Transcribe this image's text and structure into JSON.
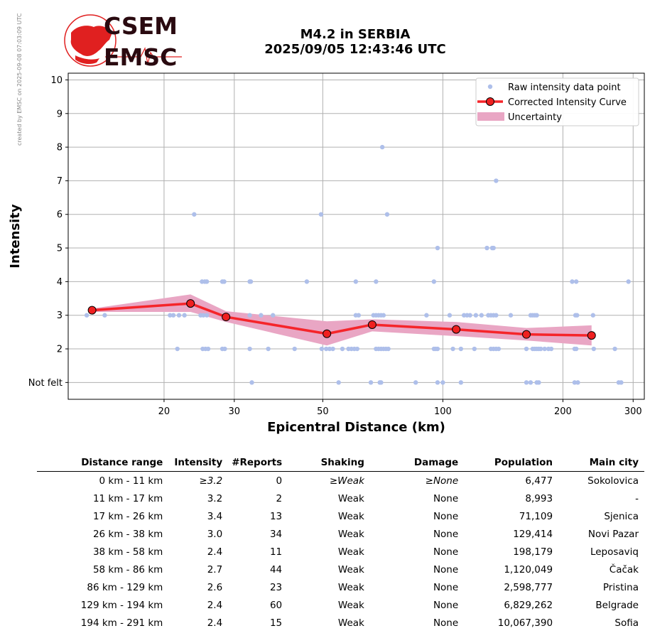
{
  "header": {
    "logo_top": "CSEM",
    "logo_bottom": "EMSC",
    "title_line1": "M4.2 in SERBIA",
    "title_line2": "2025/09/05 12:43:46 UTC",
    "side_credit": "created by EMSC on 2025-09-08 07:03:09 UTC"
  },
  "colors": {
    "raw_points": "#aebfea",
    "curve": "#f5252a",
    "curve_markers": "#ef2020",
    "uncertainty": "#e9a6c4",
    "grid": "#b0b0b0",
    "logo_red": "#e02020",
    "logo_dark": "#2a0a10"
  },
  "chart_data": {
    "type": "scatter",
    "title": "M4.2 in SERBIA\n2025/09/05 12:43:46 UTC",
    "xlabel": "Epicentral Distance (km)",
    "ylabel": "Intensity",
    "x_scale": "log",
    "xlim": [
      11.5,
      320
    ],
    "ylim": [
      0.5,
      10.2
    ],
    "x_ticks": [
      20,
      30,
      50,
      100,
      200,
      300
    ],
    "y_ticks": [
      1,
      2,
      3,
      4,
      5,
      6,
      7,
      8,
      9,
      10
    ],
    "y_tick_labels": [
      "Not felt",
      "2",
      "3",
      "4",
      "5",
      "6",
      "7",
      "8",
      "9",
      "10"
    ],
    "grid": true,
    "legend_position": "top-right",
    "legend": [
      "Raw intensity data point",
      "Corrected Intensity Curve",
      "Uncertainty"
    ],
    "series": [
      {
        "name": "Raw intensity data point",
        "type": "scatter",
        "points": [
          [
            12.8,
            3
          ],
          [
            14.2,
            3
          ],
          [
            20.7,
            3
          ],
          [
            21.1,
            3
          ],
          [
            21.8,
            3
          ],
          [
            22.5,
            3
          ],
          [
            21.6,
            2
          ],
          [
            23.8,
            6
          ],
          [
            24.9,
            4
          ],
          [
            25.3,
            4
          ],
          [
            25.6,
            4
          ],
          [
            24.7,
            3
          ],
          [
            25.1,
            3
          ],
          [
            25.6,
            3
          ],
          [
            25.0,
            2
          ],
          [
            25.4,
            2
          ],
          [
            25.8,
            2
          ],
          [
            28.0,
            4
          ],
          [
            28.3,
            4
          ],
          [
            28.0,
            2
          ],
          [
            28.4,
            2
          ],
          [
            32.8,
            4
          ],
          [
            33.0,
            4
          ],
          [
            32.8,
            3
          ],
          [
            35.0,
            3
          ],
          [
            37.5,
            3
          ],
          [
            32.8,
            2
          ],
          [
            36.5,
            2
          ],
          [
            33.2,
            1
          ],
          [
            42.5,
            2
          ],
          [
            45.6,
            4
          ],
          [
            49.5,
            6
          ],
          [
            49.7,
            2
          ],
          [
            51.0,
            2
          ],
          [
            52.0,
            2
          ],
          [
            53.0,
            2
          ],
          [
            54.8,
            1
          ],
          [
            56.0,
            2
          ],
          [
            58.0,
            2
          ],
          [
            59.0,
            2
          ],
          [
            60.0,
            2
          ],
          [
            61.0,
            2
          ],
          [
            60.5,
            3
          ],
          [
            61.5,
            3
          ],
          [
            60.5,
            4
          ],
          [
            66.0,
            1
          ],
          [
            67.0,
            3
          ],
          [
            68.0,
            3
          ],
          [
            69.0,
            3
          ],
          [
            70.0,
            3
          ],
          [
            71.0,
            3
          ],
          [
            68.0,
            4
          ],
          [
            70.5,
            8
          ],
          [
            72.5,
            6
          ],
          [
            68.0,
            2
          ],
          [
            69.0,
            2
          ],
          [
            70.0,
            2
          ],
          [
            71.0,
            2
          ],
          [
            72.0,
            2
          ],
          [
            73.0,
            2
          ],
          [
            69.5,
            1
          ],
          [
            70.0,
            1
          ],
          [
            85.5,
            1
          ],
          [
            91.0,
            3
          ],
          [
            95.0,
            4
          ],
          [
            95.0,
            2
          ],
          [
            96.0,
            2
          ],
          [
            97.0,
            2
          ],
          [
            97.0,
            5
          ],
          [
            97.0,
            1
          ],
          [
            100.0,
            1
          ],
          [
            104.0,
            3
          ],
          [
            106.0,
            2
          ],
          [
            111.0,
            2
          ],
          [
            113.0,
            3
          ],
          [
            115.0,
            3
          ],
          [
            117.0,
            3
          ],
          [
            111.0,
            1
          ],
          [
            120.0,
            2
          ],
          [
            121.0,
            3
          ],
          [
            125.0,
            3
          ],
          [
            129.0,
            5
          ],
          [
            133.0,
            5
          ],
          [
            134.0,
            5
          ],
          [
            130.0,
            3
          ],
          [
            132.0,
            3
          ],
          [
            134.0,
            3
          ],
          [
            136.0,
            3
          ],
          [
            132.0,
            2
          ],
          [
            134.0,
            2
          ],
          [
            136.0,
            2
          ],
          [
            138.0,
            2
          ],
          [
            136.0,
            7
          ],
          [
            148.0,
            3
          ],
          [
            162.0,
            2
          ],
          [
            162.0,
            1
          ],
          [
            166.0,
            1
          ],
          [
            166.0,
            3
          ],
          [
            168.0,
            3
          ],
          [
            170.0,
            3
          ],
          [
            172.0,
            3
          ],
          [
            168.0,
            2
          ],
          [
            170.0,
            2
          ],
          [
            172.0,
            2
          ],
          [
            174.0,
            2
          ],
          [
            176.0,
            2
          ],
          [
            180.0,
            2
          ],
          [
            184.0,
            2
          ],
          [
            187.0,
            2
          ],
          [
            172.0,
            1
          ],
          [
            174.0,
            1
          ],
          [
            211.0,
            4
          ],
          [
            216.0,
            4
          ],
          [
            215.0,
            3
          ],
          [
            217.0,
            3
          ],
          [
            214.0,
            2
          ],
          [
            216.0,
            2
          ],
          [
            214.0,
            1
          ],
          [
            218.0,
            1
          ],
          [
            238.0,
            3
          ],
          [
            239.0,
            2
          ],
          [
            270.0,
            2
          ],
          [
            276.0,
            1
          ],
          [
            280.0,
            1
          ],
          [
            292.0,
            4
          ]
        ]
      },
      {
        "name": "Corrected Intensity Curve",
        "type": "line",
        "x": [
          13.2,
          23.3,
          28.6,
          51.2,
          66.5,
          108.0,
          162.0,
          236.0
        ],
        "y": [
          3.15,
          3.35,
          2.95,
          2.45,
          2.72,
          2.58,
          2.43,
          2.4
        ]
      },
      {
        "name": "Uncertainty",
        "type": "area",
        "x": [
          13.2,
          23.3,
          28.6,
          51.2,
          66.5,
          108.0,
          162.0,
          236.0
        ],
        "upper": [
          3.2,
          3.62,
          3.12,
          2.82,
          2.88,
          2.8,
          2.62,
          2.7
        ],
        "lower": [
          3.1,
          3.1,
          2.8,
          2.1,
          2.52,
          2.38,
          2.25,
          2.1
        ]
      }
    ]
  },
  "table": {
    "headers": [
      "Distance range",
      "Intensity",
      "#Reports",
      "Shaking",
      "Damage",
      "Population",
      "Main city"
    ],
    "rows": [
      [
        "0 km -   11 km",
        "≥3.2",
        "0",
        "≥Weak",
        "≥None",
        "6,477",
        "Sokolovica"
      ],
      [
        "11 km -   17 km",
        "3.2",
        "2",
        "Weak",
        "None",
        "8,993",
        "-"
      ],
      [
        "17 km -   26 km",
        "3.4",
        "13",
        "Weak",
        "None",
        "71,109",
        "Sjenica"
      ],
      [
        "26 km -   38 km",
        "3.0",
        "34",
        "Weak",
        "None",
        "129,414",
        "Novi Pazar"
      ],
      [
        "38 km -   58 km",
        "2.4",
        "11",
        "Weak",
        "None",
        "198,179",
        "Leposaviq"
      ],
      [
        "58 km -   86 km",
        "2.7",
        "44",
        "Weak",
        "None",
        "1,120,049",
        "Čačak"
      ],
      [
        "86 km -  129 km",
        "2.6",
        "23",
        "Weak",
        "None",
        "2,598,777",
        "Pristina"
      ],
      [
        "129 km -  194 km",
        "2.4",
        "60",
        "Weak",
        "None",
        "6,829,262",
        "Belgrade"
      ],
      [
        "194 km -  291 km",
        "2.4",
        "15",
        "Weak",
        "None",
        "10,067,390",
        "Sofia"
      ]
    ]
  }
}
